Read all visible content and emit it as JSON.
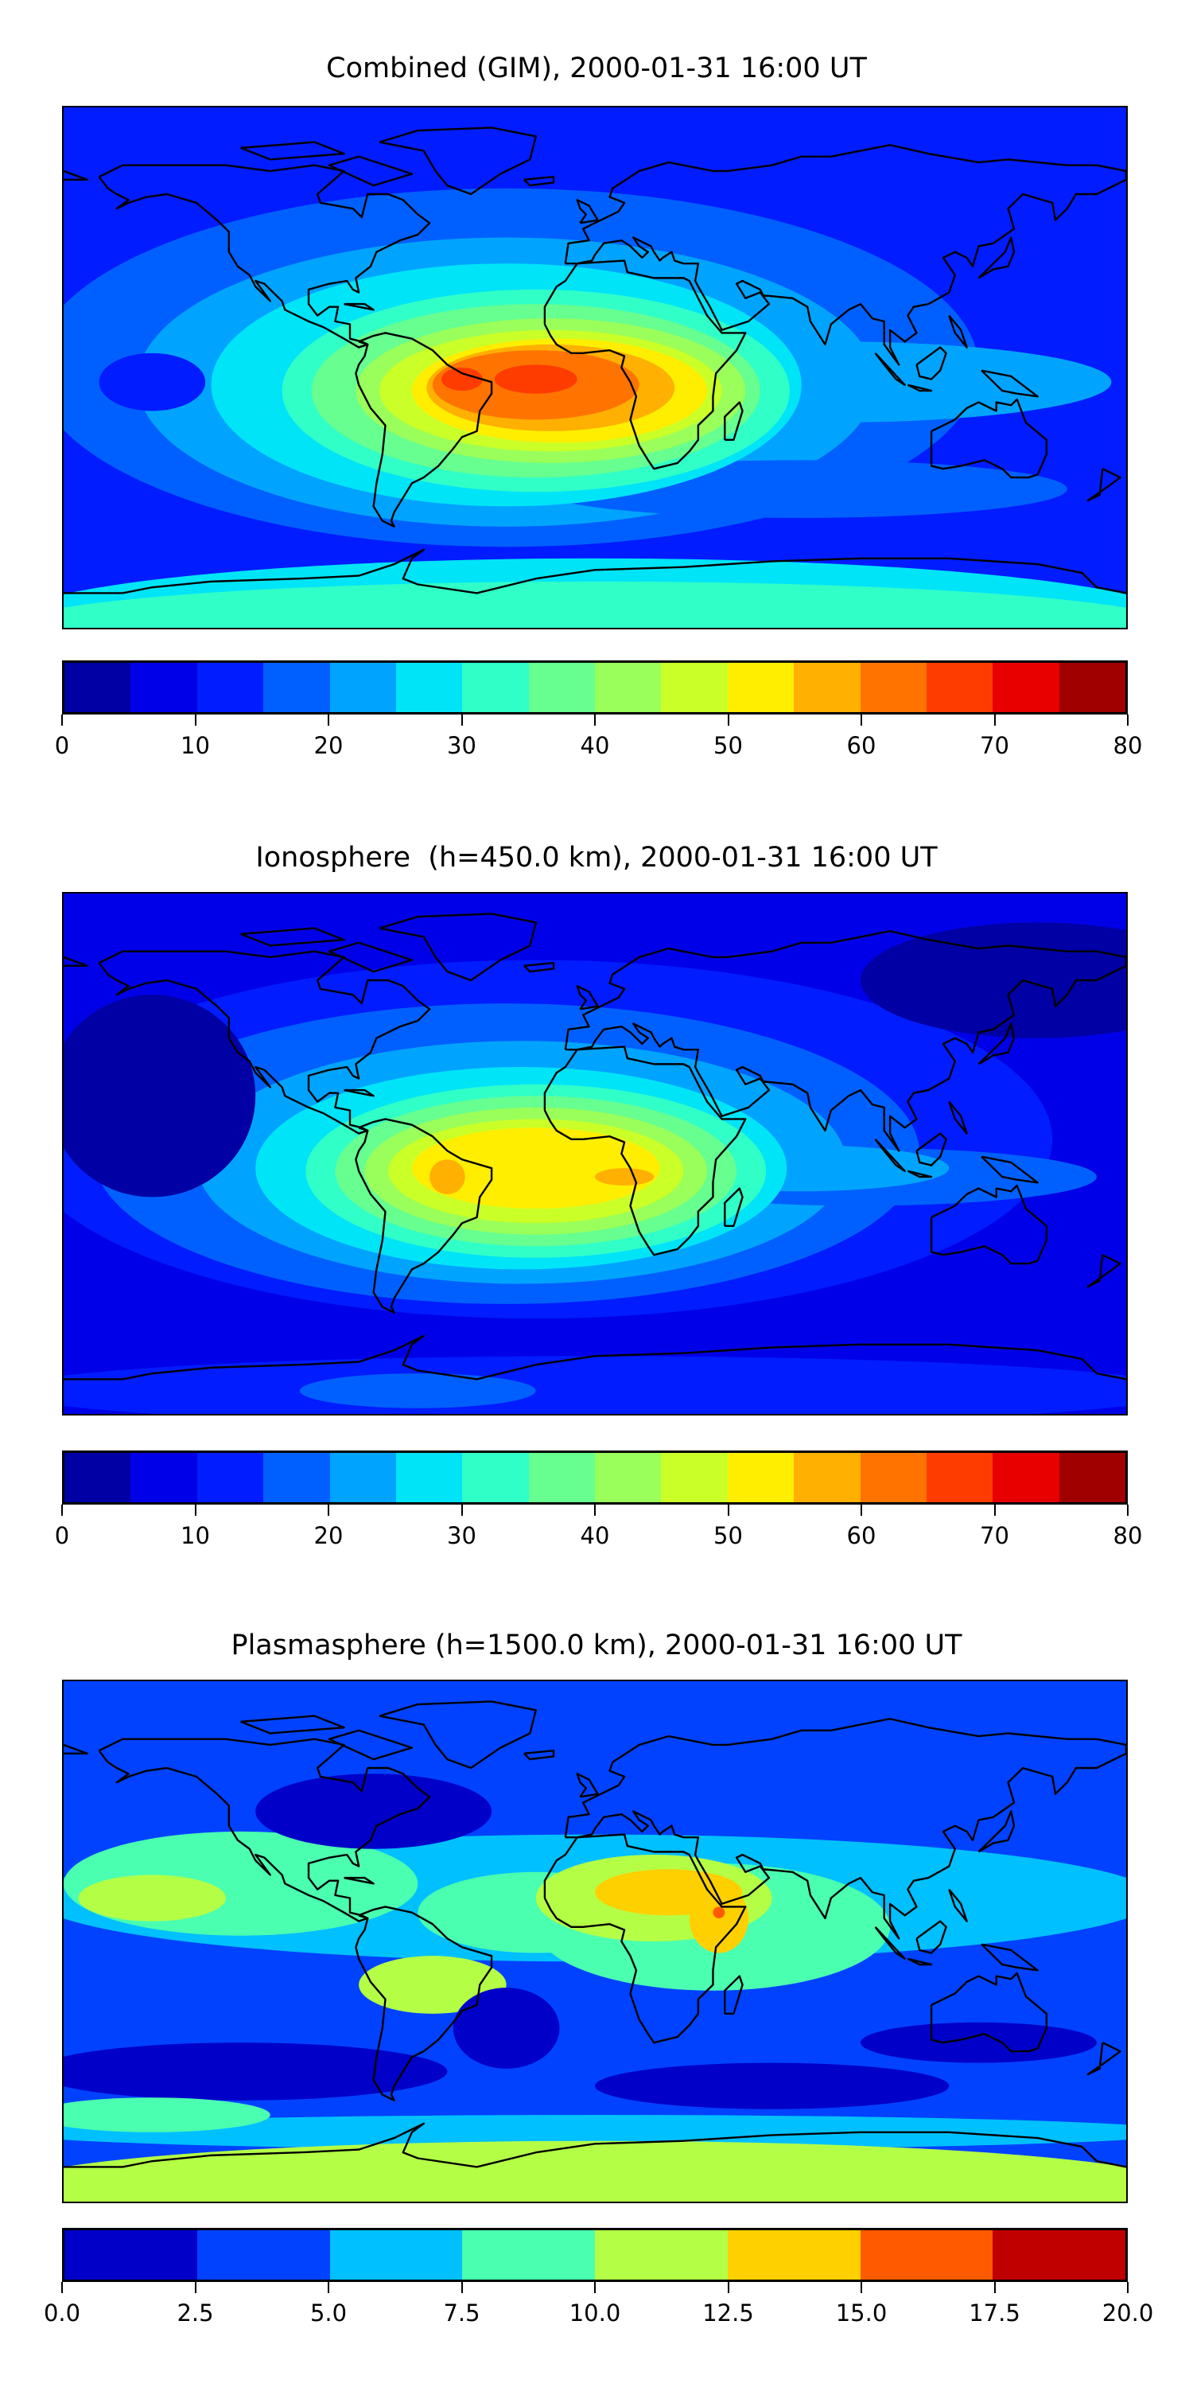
{
  "chart_data": [
    {
      "type": "heatmap",
      "title": "Combined (GIM), 2000-01-31 16:00 UT",
      "projection": "global lon/lat map with coastlines",
      "colorbar": {
        "ticks": [
          "0",
          "10",
          "20",
          "30",
          "40",
          "50",
          "60",
          "70",
          "80"
        ],
        "range": [
          0,
          80
        ],
        "levels": [
          0,
          5,
          10,
          15,
          20,
          25,
          30,
          35,
          40,
          45,
          50,
          55,
          60,
          65,
          70,
          75,
          80
        ],
        "colors": [
          "#0000a4",
          "#0000e8",
          "#001cff",
          "#0060ff",
          "#00a4ff",
          "#00e4f8",
          "#30ffc8",
          "#66ff90",
          "#9aff5a",
          "#caff28",
          "#ffee00",
          "#ffb000",
          "#ff7400",
          "#ff3c00",
          "#e80000",
          "#a00000"
        ]
      }
    },
    {
      "type": "heatmap",
      "title": "Ionosphere  (h=450.0 km), 2000-01-31 16:00 UT",
      "projection": "global lon/lat map with coastlines",
      "colorbar": {
        "ticks": [
          "0",
          "10",
          "20",
          "30",
          "40",
          "50",
          "60",
          "70",
          "80"
        ],
        "range": [
          0,
          80
        ],
        "levels": [
          0,
          5,
          10,
          15,
          20,
          25,
          30,
          35,
          40,
          45,
          50,
          55,
          60,
          65,
          70,
          75,
          80
        ],
        "colors": [
          "#0000a4",
          "#0000e8",
          "#001cff",
          "#0060ff",
          "#00a4ff",
          "#00e4f8",
          "#30ffc8",
          "#66ff90",
          "#9aff5a",
          "#caff28",
          "#ffee00",
          "#ffb000",
          "#ff7400",
          "#ff3c00",
          "#e80000",
          "#a00000"
        ]
      }
    },
    {
      "type": "heatmap",
      "title": "Plasmasphere (h=1500.0 km), 2000-01-31 16:00 UT",
      "projection": "global lon/lat map with coastlines",
      "colorbar": {
        "ticks": [
          "0.0",
          "2.5",
          "5.0",
          "7.5",
          "10.0",
          "12.5",
          "15.0",
          "17.5",
          "20.0"
        ],
        "range": [
          0,
          20
        ],
        "levels": [
          0,
          2.5,
          5,
          7.5,
          10,
          12.5,
          15,
          17.5,
          20
        ],
        "colors": [
          "#0000c8",
          "#0042ff",
          "#00c0ff",
          "#4affb0",
          "#b4ff46",
          "#ffd000",
          "#ff5a00",
          "#c00000"
        ]
      }
    }
  ]
}
